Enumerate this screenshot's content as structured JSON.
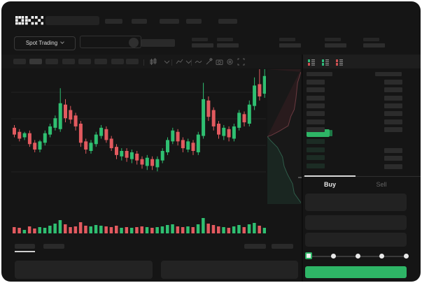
{
  "app": {
    "logo_text": "OKX"
  },
  "colors": {
    "window_bg": "#151515",
    "accent_green": "#2eb566",
    "accent_green_dark": "#1d7a46",
    "candle_green": "#2fbf71",
    "candle_red": "#e25a5f",
    "placeholder_grey": "#2a2a2a",
    "bid_row_tint": "#1c2c24",
    "depth_ask_line": "#6b3a40",
    "depth_ask_fill": "rgba(120,45,55,0.18)",
    "depth_bid_line": "#2f5c49",
    "depth_bid_fill": "rgba(35,95,70,0.20)"
  },
  "header": {
    "search_placeholder": "",
    "nav_placeholder_count": 5
  },
  "market_bar": {
    "market_selector_value": "Spot Trading",
    "stats_placeholder_count": 5
  },
  "chart_toolbar": {
    "timeframe_placeholder_count": 8,
    "active_timeframe_index": 1,
    "icon_names": [
      "candle-style-icon",
      "chevron-down-icon",
      "indicators-icon",
      "chevron-down-icon",
      "line-tool-icon",
      "draw-icon",
      "camera-icon",
      "settings-icon",
      "fullscreen-icon"
    ]
  },
  "order_book": {
    "layout_icon_names": [
      "book-split-view-icon",
      "book-bids-view-icon",
      "book-asks-view-icon"
    ],
    "header_placeholder_count": 2,
    "ask_row_count": 7,
    "bid_row_count": 4,
    "bid_amount_row_count": 3
  },
  "trade_panel": {
    "buy_tab_label": "Buy",
    "sell_tab_label": "Sell",
    "field_count": 3,
    "slider_stop_count": 5,
    "slider_value_index": 0,
    "buy_button_label": ""
  },
  "bottom_bar": {
    "left_tab_count": 2,
    "active_left_tab_index": 0,
    "right_tab_count": 2,
    "panel_count": 2
  },
  "chart_data": {
    "type": "candlestick",
    "title": "",
    "price_range": [
      0,
      100
    ],
    "grid": "faint-horizontal",
    "series": [
      {
        "name": "price",
        "encoding": "[open, high, low, close]"
      }
    ],
    "candles": [
      [
        57,
        59,
        50,
        52
      ],
      [
        54,
        56,
        47,
        49
      ],
      [
        50,
        54,
        48,
        53
      ],
      [
        53,
        55,
        43,
        45
      ],
      [
        46,
        48,
        39,
        41
      ],
      [
        41,
        48,
        39,
        47
      ],
      [
        46,
        55,
        44,
        53
      ],
      [
        52,
        60,
        50,
        58
      ],
      [
        57,
        66,
        55,
        64
      ],
      [
        56,
        86,
        54,
        75
      ],
      [
        74,
        78,
        61,
        64
      ],
      [
        70,
        73,
        60,
        63
      ],
      [
        66,
        68,
        55,
        58
      ],
      [
        60,
        62,
        43,
        46
      ],
      [
        47,
        49,
        38,
        41
      ],
      [
        40,
        48,
        38,
        46
      ],
      [
        45,
        54,
        43,
        52
      ],
      [
        51,
        59,
        49,
        57
      ],
      [
        56,
        58,
        46,
        48
      ],
      [
        49,
        51,
        40,
        42
      ],
      [
        43,
        45,
        34,
        37
      ],
      [
        36,
        42,
        33,
        40
      ],
      [
        40,
        42,
        32,
        35
      ],
      [
        34,
        41,
        31,
        39
      ],
      [
        38,
        40,
        30,
        33
      ],
      [
        34,
        36,
        27,
        30
      ],
      [
        29,
        37,
        26,
        35
      ],
      [
        34,
        36,
        26,
        29
      ],
      [
        28,
        36,
        25,
        34
      ],
      [
        33,
        42,
        31,
        40
      ],
      [
        39,
        50,
        37,
        48
      ],
      [
        47,
        57,
        45,
        55
      ],
      [
        54,
        56,
        44,
        47
      ],
      [
        48,
        50,
        39,
        42
      ],
      [
        41,
        49,
        39,
        47
      ],
      [
        46,
        48,
        37,
        40
      ],
      [
        39,
        54,
        37,
        52
      ],
      [
        51,
        90,
        49,
        78
      ],
      [
        77,
        80,
        62,
        65
      ],
      [
        70,
        72,
        55,
        58
      ],
      [
        60,
        62,
        49,
        52
      ],
      [
        51,
        59,
        48,
        57
      ],
      [
        56,
        58,
        47,
        50
      ],
      [
        49,
        60,
        47,
        58
      ],
      [
        57,
        70,
        55,
        68
      ],
      [
        67,
        69,
        58,
        61
      ],
      [
        60,
        77,
        58,
        74
      ],
      [
        73,
        94,
        70,
        88
      ],
      [
        89,
        100,
        77,
        80
      ],
      [
        82,
        100,
        79,
        95
      ]
    ],
    "volumes": [
      9,
      8,
      5,
      10,
      7,
      9,
      8,
      11,
      14,
      19,
      13,
      9,
      10,
      16,
      11,
      10,
      12,
      11,
      10,
      9,
      11,
      8,
      9,
      8,
      9,
      10,
      9,
      8,
      9,
      10,
      12,
      13,
      10,
      9,
      10,
      9,
      13,
      22,
      14,
      12,
      10,
      9,
      8,
      10,
      12,
      9,
      13,
      15,
      11,
      8
    ],
    "depth": {
      "asks_profile": [
        [
          1,
          0.02
        ],
        [
          0.9,
          0.1
        ],
        [
          0.85,
          0.22
        ],
        [
          0.8,
          0.3
        ],
        [
          0.7,
          0.35
        ],
        [
          0.62,
          0.42
        ],
        [
          0.35,
          0.46
        ],
        [
          0.12,
          0.49
        ],
        [
          0,
          0.5
        ]
      ],
      "bids_profile": [
        [
          0,
          0.5
        ],
        [
          0.1,
          0.53
        ],
        [
          0.3,
          0.58
        ],
        [
          0.45,
          0.65
        ],
        [
          0.5,
          0.72
        ],
        [
          0.6,
          0.78
        ],
        [
          0.75,
          0.85
        ],
        [
          0.8,
          0.92
        ],
        [
          1,
          0.99
        ]
      ]
    }
  }
}
